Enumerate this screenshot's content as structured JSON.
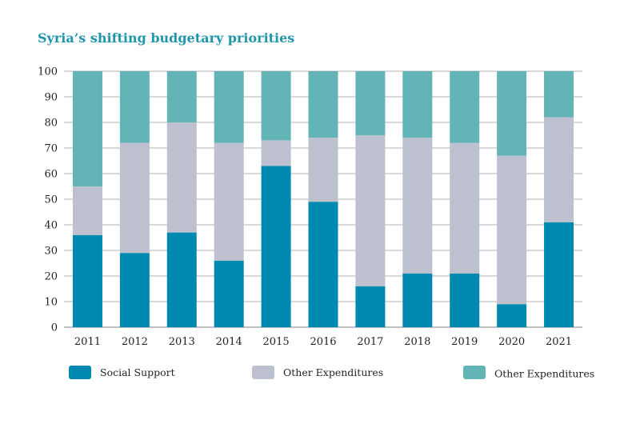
{
  "title": "Syria’s shifting budgetary priorities",
  "colors": {
    "social_support": "#0089b0",
    "other_expenditures_a": "#bcc0cf",
    "other_expenditures_b": "#63b4b6",
    "grid": "#9a9a9a",
    "title": "#1f96ad"
  },
  "chart_data": {
    "type": "bar",
    "stacked": true,
    "categories": [
      "2011",
      "2012",
      "2013",
      "2014",
      "2015",
      "2016",
      "2017",
      "2018",
      "2019",
      "2020",
      "2021"
    ],
    "series": [
      {
        "name": "Social Support",
        "color": "#0089b0",
        "values": [
          36,
          29,
          37,
          26,
          63,
          49,
          16,
          21,
          21,
          9,
          41
        ]
      },
      {
        "name": "Other Expenditures",
        "color": "#bcc0cf",
        "values": [
          19,
          43,
          43,
          46,
          10,
          25,
          59,
          53,
          51,
          58,
          41
        ]
      },
      {
        "name": "Other Expenditures",
        "color": "#63b4b6",
        "values": [
          45,
          28,
          20,
          28,
          27,
          26,
          25,
          26,
          28,
          33,
          18
        ]
      }
    ],
    "ylim": [
      0,
      100
    ],
    "yticks": [
      0,
      10,
      20,
      30,
      40,
      50,
      60,
      70,
      80,
      90,
      100
    ],
    "grid": true,
    "legend_position": "bottom"
  }
}
